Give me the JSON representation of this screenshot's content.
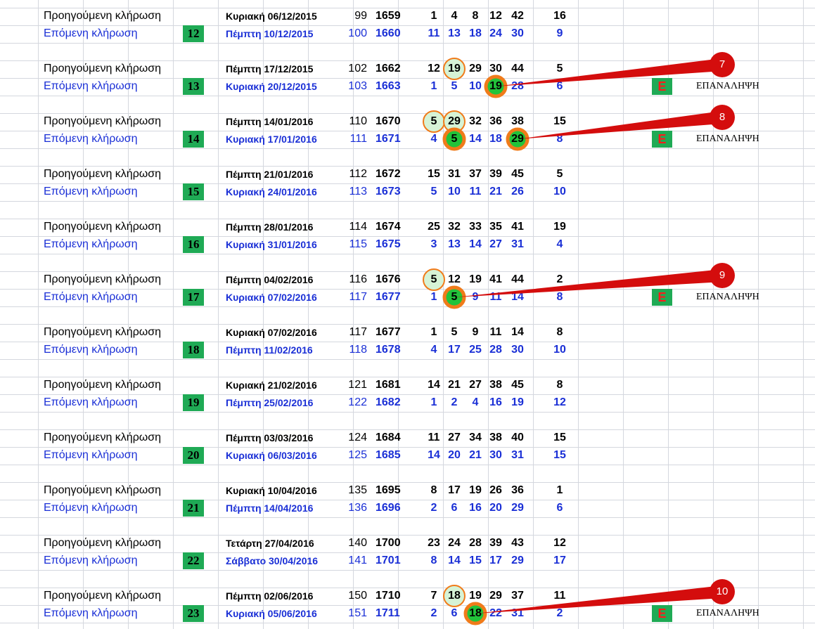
{
  "rows": [
    {
      "group": "11",
      "prev": {
        "label": "Προηγούμενη κλήρωση",
        "date": "Κυριακή 06/12/2015",
        "seq": "99",
        "draw": "1659",
        "nums": [
          "1",
          "4",
          "8",
          "12",
          "42"
        ],
        "bonus": "16"
      },
      "next": {
        "label": "Επόμενη κλήρωση",
        "badge": "12",
        "date": "Πέμπτη 10/12/2015",
        "seq": "100",
        "draw": "1660",
        "nums": [
          "11",
          "13",
          "18",
          "24",
          "30"
        ],
        "bonus": "9"
      }
    },
    {
      "group": "12",
      "prev": {
        "label": "Προηγούμενη κλήρωση",
        "date": "Πέμπτη 17/12/2015",
        "seq": "102",
        "draw": "1662",
        "nums": [
          "12",
          "19",
          "29",
          "30",
          "44"
        ],
        "bonus": "5"
      },
      "next": {
        "label": "Επόμενη κλήρωση",
        "badge": "13",
        "date": "Κυριακή 20/12/2015",
        "seq": "103",
        "draw": "1663",
        "nums": [
          "1",
          "5",
          "10",
          "19",
          "28"
        ],
        "bonus": "6"
      },
      "marker": "E",
      "marker_text": "ΕΠΑΝΑΛΗΨΗ",
      "callout": "7"
    },
    {
      "group": "13",
      "prev": {
        "label": "Προηγούμενη κλήρωση",
        "date": "Πέμπτη 14/01/2016",
        "seq": "110",
        "draw": "1670",
        "nums": [
          "5",
          "29",
          "32",
          "36",
          "38"
        ],
        "bonus": "15"
      },
      "next": {
        "label": "Επόμενη κλήρωση",
        "badge": "14",
        "date": "Κυριακή 17/01/2016",
        "seq": "111",
        "draw": "1671",
        "nums": [
          "4",
          "5",
          "14",
          "18",
          "29"
        ],
        "bonus": "8"
      },
      "marker": "E",
      "marker_text": "ΕΠΑΝΑΛΗΨΗ",
      "callout": "8"
    },
    {
      "group": "14",
      "prev": {
        "label": "Προηγούμενη κλήρωση",
        "date": "Πέμπτη 21/01/2016",
        "seq": "112",
        "draw": "1672",
        "nums": [
          "15",
          "31",
          "37",
          "39",
          "45"
        ],
        "bonus": "5"
      },
      "next": {
        "label": "Επόμενη κλήρωση",
        "badge": "15",
        "date": "Κυριακή 24/01/2016",
        "seq": "113",
        "draw": "1673",
        "nums": [
          "5",
          "10",
          "11",
          "21",
          "26"
        ],
        "bonus": "10"
      }
    },
    {
      "group": "15",
      "prev": {
        "label": "Προηγούμενη κλήρωση",
        "date": "Πέμπτη 28/01/2016",
        "seq": "114",
        "draw": "1674",
        "nums": [
          "25",
          "32",
          "33",
          "35",
          "41"
        ],
        "bonus": "19"
      },
      "next": {
        "label": "Επόμενη κλήρωση",
        "badge": "16",
        "date": "Κυριακή 31/01/2016",
        "seq": "115",
        "draw": "1675",
        "nums": [
          "3",
          "13",
          "14",
          "27",
          "31"
        ],
        "bonus": "4"
      }
    },
    {
      "group": "16",
      "prev": {
        "label": "Προηγούμενη κλήρωση",
        "date": "Πέμπτη 04/02/2016",
        "seq": "116",
        "draw": "1676",
        "nums": [
          "5",
          "12",
          "19",
          "41",
          "44"
        ],
        "bonus": "2"
      },
      "next": {
        "label": "Επόμενη κλήρωση",
        "badge": "17",
        "date": "Κυριακή 07/02/2016",
        "seq": "117",
        "draw": "1677",
        "nums": [
          "1",
          "5",
          "9",
          "11",
          "14"
        ],
        "bonus": "8"
      },
      "marker": "E",
      "marker_text": "ΕΠΑΝΑΛΗΨΗ",
      "callout": "9"
    },
    {
      "group": "17",
      "prev": {
        "label": "Προηγούμενη κλήρωση",
        "date": "Κυριακή 07/02/2016",
        "seq": "117",
        "draw": "1677",
        "nums": [
          "1",
          "5",
          "9",
          "11",
          "14"
        ],
        "bonus": "8"
      },
      "next": {
        "label": "Επόμενη κλήρωση",
        "badge": "18",
        "date": "Πέμπτη 11/02/2016",
        "seq": "118",
        "draw": "1678",
        "nums": [
          "4",
          "17",
          "25",
          "28",
          "30"
        ],
        "bonus": "10"
      }
    },
    {
      "group": "18",
      "prev": {
        "label": "Προηγούμενη κλήρωση",
        "date": "Κυριακή 21/02/2016",
        "seq": "121",
        "draw": "1681",
        "nums": [
          "14",
          "21",
          "27",
          "38",
          "45"
        ],
        "bonus": "8"
      },
      "next": {
        "label": "Επόμενη κλήρωση",
        "badge": "19",
        "date": "Πέμπτη 25/02/2016",
        "seq": "122",
        "draw": "1682",
        "nums": [
          "1",
          "2",
          "4",
          "16",
          "19"
        ],
        "bonus": "12"
      }
    },
    {
      "group": "19",
      "prev": {
        "label": "Προηγούμενη κλήρωση",
        "date": "Πέμπτη 03/03/2016",
        "seq": "124",
        "draw": "1684",
        "nums": [
          "11",
          "27",
          "34",
          "38",
          "40"
        ],
        "bonus": "15"
      },
      "next": {
        "label": "Επόμενη κλήρωση",
        "badge": "20",
        "date": "Κυριακή 06/03/2016",
        "seq": "125",
        "draw": "1685",
        "nums": [
          "14",
          "20",
          "21",
          "30",
          "31"
        ],
        "bonus": "15"
      }
    },
    {
      "group": "20",
      "prev": {
        "label": "Προηγούμενη κλήρωση",
        "date": "Κυριακή 10/04/2016",
        "seq": "135",
        "draw": "1695",
        "nums": [
          "8",
          "17",
          "19",
          "26",
          "36"
        ],
        "bonus": "1"
      },
      "next": {
        "label": "Επόμενη κλήρωση",
        "badge": "21",
        "date": "Πέμπτη 14/04/2016",
        "seq": "136",
        "draw": "1696",
        "nums": [
          "2",
          "6",
          "16",
          "20",
          "29"
        ],
        "bonus": "6"
      }
    },
    {
      "group": "21",
      "prev": {
        "label": "Προηγούμενη κλήρωση",
        "date": "Τετάρτη 27/04/2016",
        "seq": "140",
        "draw": "1700",
        "nums": [
          "23",
          "24",
          "28",
          "39",
          "43"
        ],
        "bonus": "12"
      },
      "next": {
        "label": "Επόμενη κλήρωση",
        "badge": "22",
        "date": "Σάββατο 30/04/2016",
        "seq": "141",
        "draw": "1701",
        "nums": [
          "8",
          "14",
          "15",
          "17",
          "29"
        ],
        "bonus": "17"
      }
    },
    {
      "group": "22",
      "prev": {
        "label": "Προηγούμενη κλήρωση",
        "date": "Πέμπτη 02/06/2016",
        "seq": "150",
        "draw": "1710",
        "nums": [
          "7",
          "18",
          "19",
          "29",
          "37"
        ],
        "bonus": "11"
      },
      "next": {
        "label": "Επόμενη κλήρωση",
        "badge": "23",
        "date": "Κυριακή 05/06/2016",
        "seq": "151",
        "draw": "1711",
        "nums": [
          "2",
          "6",
          "18",
          "22",
          "31"
        ],
        "bonus": "2"
      },
      "marker": "E",
      "marker_text": "ΕΠΑΝΑΛΗΨΗ",
      "callout": "10"
    }
  ],
  "highlights": [
    {
      "row": 1,
      "line": "prev",
      "col": 1,
      "kind": "light"
    },
    {
      "row": 1,
      "line": "next",
      "col": 3,
      "kind": "bold"
    },
    {
      "row": 2,
      "line": "prev",
      "col": 0,
      "kind": "light"
    },
    {
      "row": 2,
      "line": "prev",
      "col": 1,
      "kind": "light"
    },
    {
      "row": 2,
      "line": "next",
      "col": 1,
      "kind": "bold"
    },
    {
      "row": 2,
      "line": "next",
      "col": 4,
      "kind": "bold"
    },
    {
      "row": 5,
      "line": "prev",
      "col": 0,
      "kind": "light"
    },
    {
      "row": 5,
      "line": "next",
      "col": 1,
      "kind": "bold"
    },
    {
      "row": 11,
      "line": "prev",
      "col": 1,
      "kind": "light"
    },
    {
      "row": 11,
      "line": "next",
      "col": 2,
      "kind": "bold"
    }
  ],
  "callouts": [
    {
      "row": 1,
      "target_col": 3,
      "text": "7"
    },
    {
      "row": 2,
      "target_col": 4,
      "text": "8"
    },
    {
      "row": 5,
      "target_col": 1,
      "text": "9"
    },
    {
      "row": 11,
      "target_col": 2,
      "text": "10"
    }
  ],
  "colors": {
    "prev_text": "#000000",
    "next_text": "#1a2fd6",
    "badge_bg": "#1faa55",
    "marker_text": "#ff1a1a",
    "callout": "#d40d0d",
    "ring": "#f07b1a",
    "ring_fill_light": "#d6f3d6",
    "ring_fill_bold": "#22c33a"
  }
}
